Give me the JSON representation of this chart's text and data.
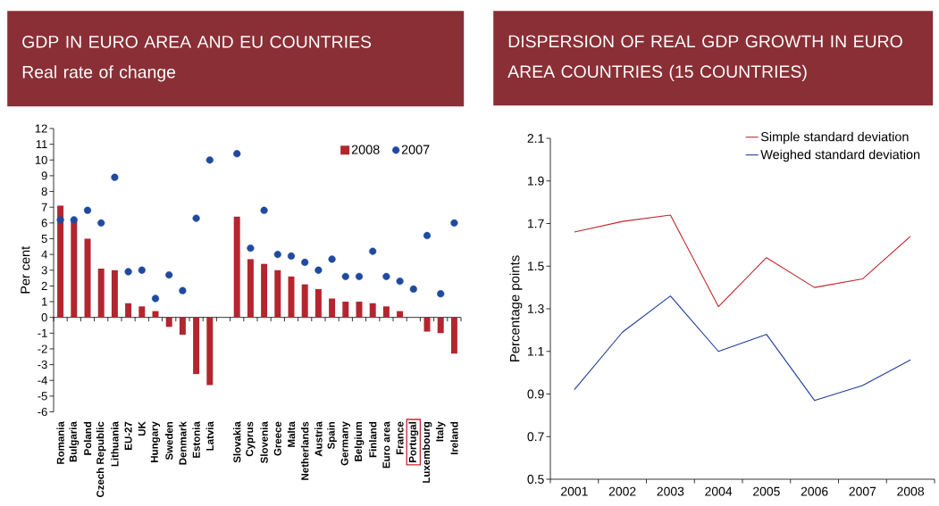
{
  "chart_data": [
    {
      "type": "bar",
      "title": "GDP IN EURO AREA AND EU COUNTRIES",
      "subtitle": "Real rate of change",
      "ylabel": "Per cent",
      "categories": [
        "Romania",
        "Bulgaria",
        "Poland",
        "Czech Republic",
        "Lithuania",
        "EU-27",
        "UK",
        "Hungary",
        "Sweden",
        "Denmark",
        "Estonia",
        "Latvia",
        null,
        "Slovakia",
        "Cyprus",
        "Slovenia",
        "Greece",
        "Malta",
        "Netherlands",
        "Austria",
        "Spain",
        "Germany",
        "Belgium",
        "Finland",
        "Euro area",
        "France",
        "Portugal",
        "Luxembourg",
        "Italy",
        "Ireland"
      ],
      "series": [
        {
          "name": "2008",
          "type": "bar",
          "color": "#b3262f",
          "values": [
            7.1,
            6.1,
            5.0,
            3.1,
            3.0,
            0.9,
            0.7,
            0.4,
            -0.6,
            -1.1,
            -3.6,
            -4.3,
            null,
            6.4,
            3.7,
            3.4,
            3.0,
            2.6,
            2.1,
            1.8,
            1.2,
            1.0,
            1.0,
            0.9,
            0.7,
            0.4,
            0,
            -0.9,
            -1.0,
            -2.3
          ]
        },
        {
          "name": "2007",
          "type": "scatter",
          "marker": "circle",
          "color": "#1f4a9e",
          "values": [
            6.2,
            6.2,
            6.8,
            6.0,
            8.9,
            2.9,
            3.0,
            1.2,
            2.7,
            1.7,
            6.3,
            10.0,
            null,
            10.4,
            4.4,
            6.8,
            4.0,
            3.9,
            3.5,
            3.0,
            3.7,
            2.6,
            2.6,
            4.2,
            2.6,
            2.3,
            1.8,
            5.2,
            1.5,
            6.0
          ]
        }
      ],
      "ylim": [
        -6,
        12
      ],
      "yticks": [
        -6,
        -5,
        -4,
        -3,
        -2,
        -1,
        0,
        1,
        2,
        3,
        4,
        5,
        6,
        7,
        8,
        9,
        10,
        11,
        12
      ],
      "legend": "top right"
    },
    {
      "type": "line",
      "title": "DISPERSION OF REAL GDP GROWTH IN EURO AREA COUNTRIES (15 COUNTRIES)",
      "ylabel": "Percentage points",
      "categories": [
        "2001",
        "2002",
        "2003",
        "2004",
        "2005",
        "2006",
        "2007",
        "2008"
      ],
      "series": [
        {
          "name": "Simple standard deviation",
          "color": "#c0272d",
          "values": [
            1.66,
            1.71,
            1.74,
            1.31,
            1.54,
            1.4,
            1.44,
            1.64
          ]
        },
        {
          "name": "Weighed standard deviation",
          "color": "#1f3c98",
          "values": [
            0.92,
            1.19,
            1.36,
            1.1,
            1.18,
            0.87,
            0.94,
            1.06
          ]
        }
      ],
      "ylim": [
        0.5,
        2.1
      ],
      "yticks": [
        0.5,
        0.7,
        0.9,
        1.1,
        1.3,
        1.5,
        1.7,
        1.9,
        2.1
      ],
      "legend": "top right"
    }
  ]
}
